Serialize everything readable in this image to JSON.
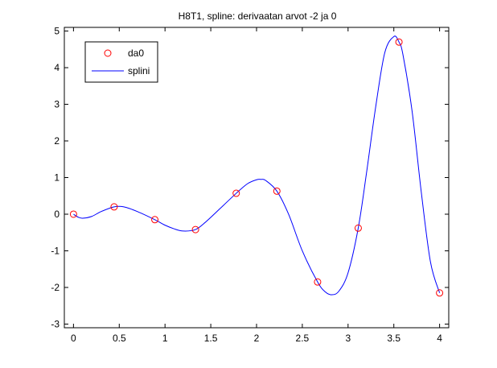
{
  "chart_data": {
    "type": "scatter",
    "title": "H8T1, spline: derivaatan arvot -2 ja 0",
    "xlabel": "",
    "ylabel": "",
    "xlim": [
      -0.1,
      4.1
    ],
    "ylim": [
      -3.1,
      5.1
    ],
    "xticks": [
      0,
      0.5,
      1,
      1.5,
      2,
      2.5,
      3,
      3.5,
      4
    ],
    "xtick_labels": [
      "0",
      "0.5",
      "1",
      "1.5",
      "2",
      "2.5",
      "3",
      "3.5",
      "4"
    ],
    "yticks": [
      -3,
      -2,
      -1,
      0,
      1,
      2,
      3,
      4,
      5
    ],
    "ytick_labels": [
      "-3",
      "-2",
      "-1",
      "0",
      "1",
      "2",
      "3",
      "4",
      "5"
    ],
    "grid": false,
    "legend_position": "top-left",
    "series": [
      {
        "name": "da0",
        "kind": "markers",
        "marker": "circle",
        "color": "#ff0000",
        "x": [
          0,
          0.444,
          0.889,
          1.333,
          1.778,
          2.222,
          2.667,
          3.111,
          3.556,
          4.0
        ],
        "y": [
          0.0,
          0.2,
          -0.15,
          -0.42,
          0.57,
          0.63,
          -1.85,
          -0.38,
          4.7,
          -2.15
        ]
      },
      {
        "name": "splini",
        "kind": "line",
        "color": "#0000ff",
        "x": [
          0,
          0.05,
          0.1,
          0.2,
          0.3,
          0.444,
          0.55,
          0.7,
          0.889,
          1.0,
          1.1,
          1.2,
          1.333,
          1.45,
          1.6,
          1.778,
          1.9,
          2.0,
          2.05,
          2.1,
          2.222,
          2.35,
          2.5,
          2.667,
          2.75,
          2.82,
          2.9,
          3.0,
          3.111,
          3.2,
          3.3,
          3.4,
          3.5,
          3.556,
          3.6,
          3.7,
          3.8,
          3.9,
          4.0
        ],
        "y": [
          0.0,
          -0.08,
          -0.11,
          -0.06,
          0.07,
          0.2,
          0.2,
          0.07,
          -0.15,
          -0.3,
          -0.4,
          -0.46,
          -0.42,
          -0.2,
          0.15,
          0.57,
          0.83,
          0.94,
          0.95,
          0.92,
          0.63,
          0.0,
          -1.0,
          -1.85,
          -2.12,
          -2.2,
          -2.1,
          -1.6,
          -0.38,
          1.1,
          2.9,
          4.4,
          4.85,
          4.7,
          4.35,
          2.8,
          0.6,
          -1.3,
          -2.15
        ]
      }
    ]
  }
}
